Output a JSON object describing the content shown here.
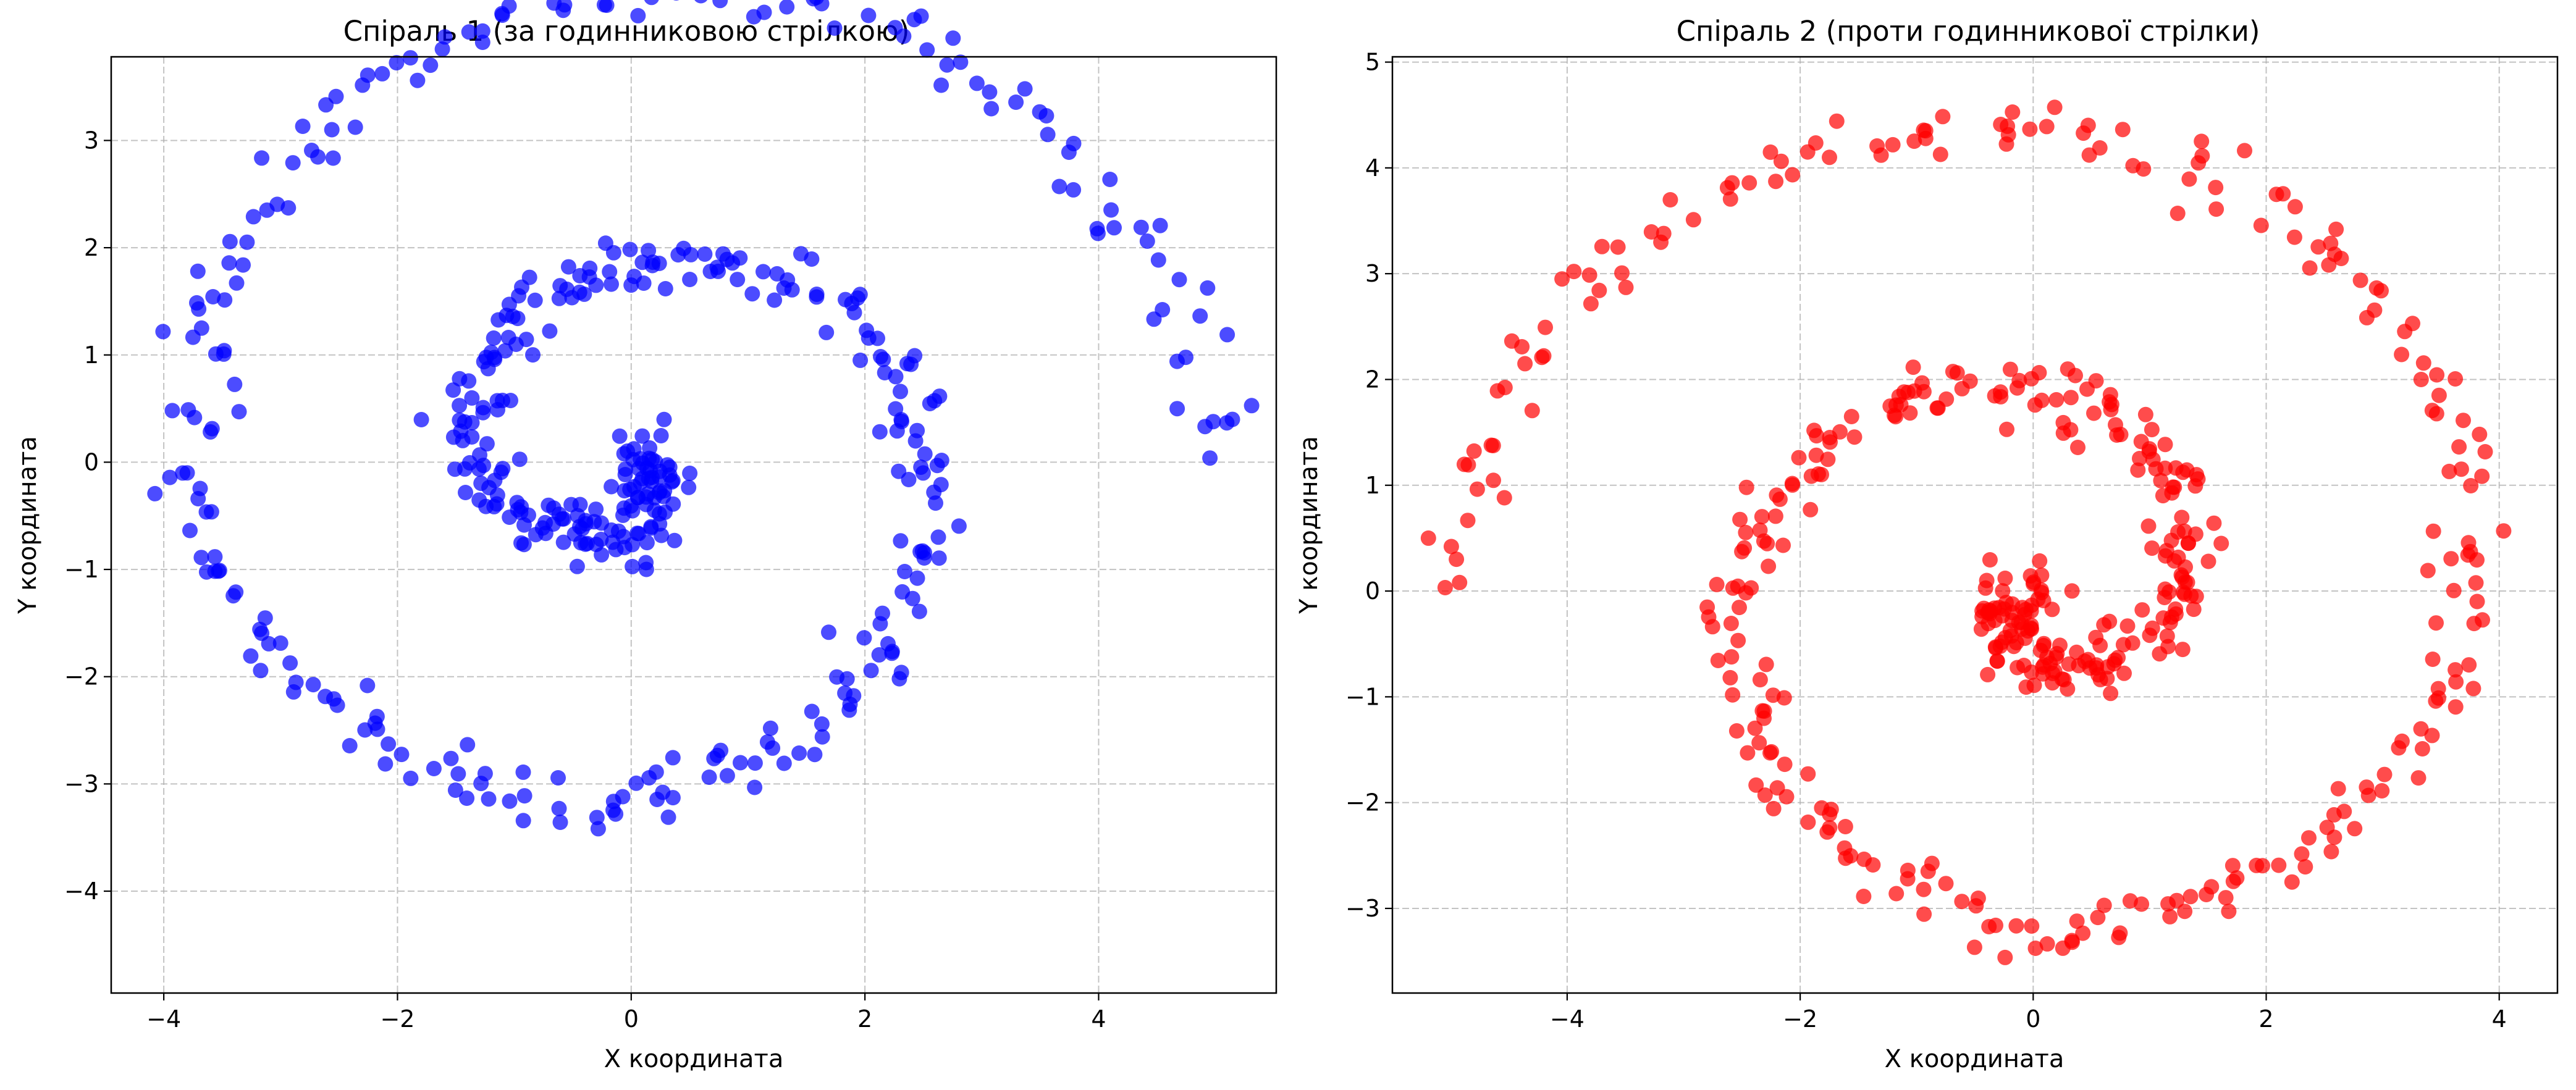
{
  "chart_data": [
    {
      "type": "scatter",
      "title": "Спіраль 1 (за годинниковою стрілкою)",
      "xlabel": "X координата",
      "ylabel": "Y координата",
      "xlim": [
        -4.45,
        5.52
      ],
      "ylim": [
        -4.95,
        3.78
      ],
      "xticks": [
        -4,
        -2,
        0,
        2,
        4
      ],
      "yticks": [
        -4,
        -3,
        -2,
        -1,
        0,
        1,
        2,
        3
      ],
      "xtick_labels": [
        "−4",
        "−2",
        "0",
        "2",
        "4"
      ],
      "ytick_labels": [
        "−4",
        "−3",
        "−2",
        "−1",
        "0",
        "1",
        "2",
        "3"
      ],
      "grid": true,
      "color": "#0000ff",
      "spiral": {
        "direction": "clockwise",
        "n": 500,
        "r_max": 5.0,
        "turns": 2.0,
        "theta_start_deg": 0,
        "noise": 0.15
      }
    },
    {
      "type": "scatter",
      "title": "Спіраль 2 (проти годинникової стрілки)",
      "xlabel": "X координата",
      "ylabel": "Y координата",
      "xlim": [
        -5.5,
        4.5
      ],
      "ylim": [
        -3.8,
        5.05
      ],
      "xticks": [
        -4,
        -2,
        0,
        2,
        4
      ],
      "yticks": [
        -3,
        -2,
        -1,
        0,
        1,
        2,
        3,
        4,
        5
      ],
      "xtick_labels": [
        "−4",
        "−2",
        "0",
        "2",
        "4"
      ],
      "ytick_labels": [
        "−3",
        "−2",
        "−1",
        "0",
        "1",
        "2",
        "3",
        "4",
        "5"
      ],
      "grid": true,
      "color": "#ff0000",
      "spiral": {
        "direction": "counterclockwise",
        "n": 500,
        "r_max": 5.0,
        "turns": 2.0,
        "theta_start_deg": 180,
        "noise": 0.15
      }
    }
  ]
}
